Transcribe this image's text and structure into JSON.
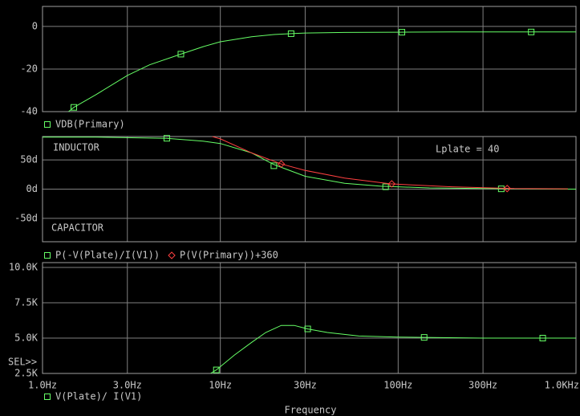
{
  "chart_data": [
    {
      "type": "line",
      "xscale": "log",
      "xlim": [
        1,
        1000
      ],
      "xticks": [
        1,
        3,
        10,
        30,
        100,
        300,
        1000
      ],
      "ylim": [
        -40,
        9.4
      ],
      "yticks": [
        -40,
        -20,
        0
      ],
      "grid": true,
      "series": [
        {
          "name": "VDB(Primary)",
          "color": "#66ff66",
          "marker": "square",
          "x": [
            1.4,
            1.5,
            2,
            3,
            4,
            6,
            8,
            10,
            15,
            20,
            25,
            30,
            50,
            100,
            200,
            500,
            1000
          ],
          "values": [
            -40,
            -38,
            -32,
            -23,
            -18,
            -13,
            -9.5,
            -7.2,
            -4.8,
            -3.8,
            -3.4,
            -3.1,
            -2.8,
            -2.7,
            -2.6,
            -2.6,
            -2.6
          ],
          "markers": {
            "x": [
              1.5,
              6,
              25,
              105,
              560
            ],
            "values": [
              -38,
              -13,
              -3.4,
              -2.7,
              -2.6
            ]
          }
        }
      ]
    },
    {
      "type": "line",
      "xscale": "log",
      "xlim": [
        1,
        1000
      ],
      "xticks": [
        1,
        3,
        10,
        30,
        100,
        300,
        1000
      ],
      "ylim": [
        -90,
        90
      ],
      "yticks": [
        {
          "value": 50,
          "label": "50d"
        },
        {
          "value": 0,
          "label": "0d"
        },
        {
          "value": -50,
          "label": "-50d"
        }
      ],
      "grid": true,
      "annotations": [
        "INDUCTOR",
        "CAPACITOR",
        "Lplate = 40"
      ],
      "series": [
        {
          "name": "P(-V(Plate)/I(V1))",
          "color": "#66ff66",
          "marker": "square",
          "x": [
            1,
            2,
            5,
            8,
            10,
            15,
            20,
            30,
            50,
            80,
            150,
            300,
            500,
            1000
          ],
          "values": [
            89,
            89,
            87,
            82,
            78,
            62,
            42,
            22,
            10,
            5,
            2,
            1,
            0.5,
            0
          ],
          "markers": {
            "x": [
              5,
              20,
              85,
              380
            ],
            "values": [
              87,
              40,
              4,
              0.5
            ]
          }
        },
        {
          "name": "P(V(Primary))+360",
          "color": "#ff4040",
          "marker": "diamond",
          "x": [
            9,
            10,
            15,
            22,
            30,
            50,
            90,
            200,
            450,
            900
          ],
          "values": [
            90,
            86,
            62,
            43,
            32,
            19,
            9,
            4,
            1,
            0.5
          ],
          "markers": {
            "x": [
              22,
              92,
              410
            ],
            "values": [
              43,
              9,
              1
            ]
          }
        }
      ]
    },
    {
      "type": "line",
      "xscale": "log",
      "xlim": [
        1,
        1000
      ],
      "xticks": [
        {
          "value": 1,
          "label": "1.0Hz"
        },
        {
          "value": 3,
          "label": "3.0Hz"
        },
        {
          "value": 10,
          "label": "10Hz"
        },
        {
          "value": 30,
          "label": "30Hz"
        },
        {
          "value": 100,
          "label": "100Hz"
        },
        {
          "value": 300,
          "label": "300Hz"
        },
        {
          "value": 1000,
          "label": "1.0KHz"
        }
      ],
      "ylim": [
        2500,
        10340
      ],
      "yticks": [
        {
          "value": 10000,
          "label": "10.0K"
        },
        {
          "value": 7500,
          "label": "7.5K"
        },
        {
          "value": 5000,
          "label": "5.0K"
        },
        {
          "value": 2500,
          "label": "2.5K"
        }
      ],
      "grid": true,
      "xlabel": "Frequency",
      "annotations": [
        "SEL>>"
      ],
      "series": [
        {
          "name": "V(Plate)/ I(V1)",
          "color": "#66ff66",
          "marker": "square",
          "x": [
            8.8,
            9.5,
            12,
            15,
            18,
            22,
            26,
            31,
            40,
            60,
            100,
            140,
            300,
            650,
            1000
          ],
          "values": [
            2500,
            2750,
            3800,
            4700,
            5400,
            5900,
            5900,
            5650,
            5400,
            5150,
            5070,
            5050,
            5000,
            5000,
            5000
          ],
          "markers": {
            "x": [
              9.5,
              31,
              140,
              650
            ],
            "values": [
              2750,
              5650,
              5050,
              5000
            ]
          }
        }
      ]
    }
  ]
}
